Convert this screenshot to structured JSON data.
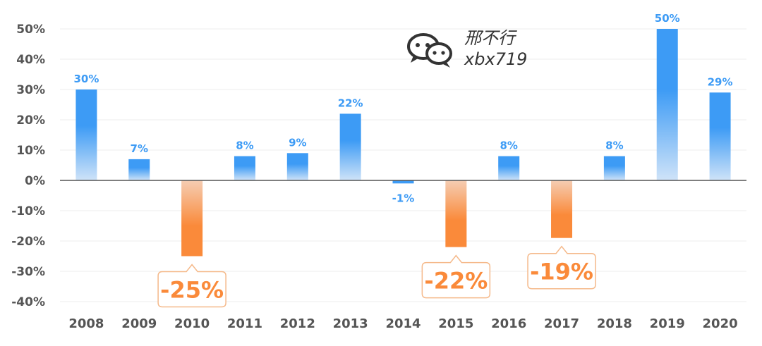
{
  "chart_data": {
    "type": "bar",
    "categories": [
      "2008",
      "2009",
      "2010",
      "2011",
      "2012",
      "2013",
      "2014",
      "2015",
      "2016",
      "2017",
      "2018",
      "2019",
      "2020"
    ],
    "values": [
      30,
      7,
      -25,
      8,
      9,
      22,
      -1,
      -22,
      8,
      -19,
      8,
      50,
      29
    ],
    "data_labels": [
      "30%",
      "7%",
      "-25%",
      "8%",
      "9%",
      "22%",
      "-1%",
      "-22%",
      "8%",
      "-19%",
      "8%",
      "50%",
      "29%"
    ],
    "ylim": [
      -40,
      50
    ],
    "yticks": [
      50,
      40,
      30,
      20,
      10,
      0,
      -10,
      -20,
      -30,
      -40
    ],
    "ytick_labels": [
      "50%",
      "40%",
      "30%",
      "20%",
      "10%",
      "0%",
      "-10%",
      "-20%",
      "-30%",
      "-40%"
    ],
    "title": "",
    "xlabel": "",
    "ylabel": "",
    "grid": true,
    "legend": "none",
    "highlighted_negative": [
      "2010",
      "2015",
      "2017"
    ]
  },
  "colors": {
    "positive": "#3d9bf5",
    "positive_light": "#cfe3f8",
    "negative": "#fa8a3a",
    "negative_light": "#f5cdb3",
    "axis": "#555555",
    "grid": "#ececec",
    "tick_text": "#555555",
    "callout_border": "#f5b98a"
  },
  "watermark": {
    "icon": "wechat-icon",
    "line1": "邢不行",
    "line2": "xbx719"
  }
}
